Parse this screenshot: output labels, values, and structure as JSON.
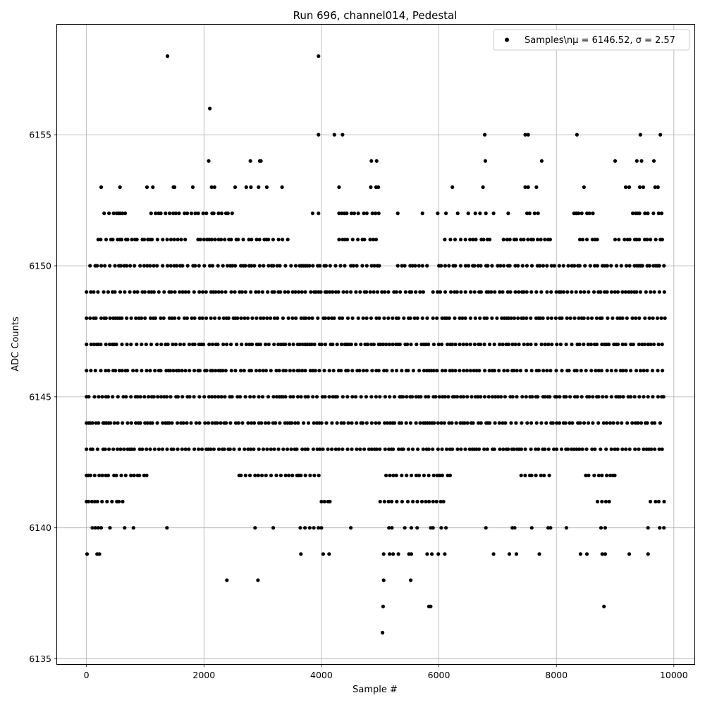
{
  "chart_data": {
    "type": "scatter",
    "title": "Run 696, channel014, Pedestal",
    "xlabel": "Sample #",
    "ylabel": "ADC Counts",
    "xlim": [
      -500,
      10350
    ],
    "ylim": [
      6134.8,
      6159.2
    ],
    "xticks": [
      0,
      2000,
      4000,
      6000,
      8000,
      10000
    ],
    "xtick_labels": [
      "0",
      "2000",
      "4000",
      "6000",
      "8000",
      "10000"
    ],
    "yticks": [
      6135,
      6140,
      6145,
      6150,
      6155
    ],
    "ytick_labels": [
      "6135",
      "6140",
      "6145",
      "6150",
      "6155"
    ],
    "grid": true,
    "legend_position": "top-right",
    "legend_label": "Samples\\nμ = 6146.52, σ = 2.57",
    "marker_color": "#000000",
    "series": [
      {
        "name": "Samples\\nμ = 6146.52, σ = 2.57",
        "bands": [
          {
            "y": 6149,
            "ranges": [
              [
                0,
                5750
              ],
              [
                5900,
                9850
              ]
            ]
          },
          {
            "y": 6148,
            "ranges": [
              [
                0,
                5800
              ],
              [
                5900,
                9850
              ]
            ]
          },
          {
            "y": 6147,
            "ranges": [
              [
                0,
                9850
              ]
            ]
          },
          {
            "y": 6146,
            "ranges": [
              [
                0,
                9850
              ]
            ]
          },
          {
            "y": 6145,
            "ranges": [
              [
                0,
                9850
              ]
            ]
          },
          {
            "y": 6144,
            "ranges": [
              [
                0,
                9850
              ]
            ]
          },
          {
            "y": 6143,
            "ranges": [
              [
                0,
                9850
              ]
            ]
          },
          {
            "y": 6150,
            "ranges": [
              [
                60,
                4400
              ],
              [
                4500,
                5000
              ],
              [
                5300,
                5800
              ],
              [
                6000,
                9850
              ]
            ]
          },
          {
            "y": 6151,
            "ranges": [
              [
                200,
                1700
              ],
              [
                1900,
                3500
              ],
              [
                4300,
                5000
              ],
              [
                6100,
                6900
              ],
              [
                7100,
                7900
              ],
              [
                8400,
                8700
              ],
              [
                9000,
                9850
              ]
            ]
          },
          {
            "y": 6142,
            "ranges": [
              [
                0,
                1100
              ],
              [
                2600,
                4000
              ],
              [
                5100,
                6200
              ],
              [
                7400,
                7900
              ],
              [
                8500,
                9000
              ]
            ]
          },
          {
            "y": 6141,
            "ranges": [
              [
                0,
                700
              ],
              [
                4000,
                4200
              ],
              [
                5000,
                6100
              ],
              [
                8700,
                8900
              ],
              [
                9600,
                9850
              ]
            ]
          },
          {
            "y": 6152,
            "ranges": [
              [
                300,
                700
              ],
              [
                1100,
                2500
              ],
              [
                4300,
                5000
              ],
              [
                7500,
                7700
              ],
              [
                8300,
                8700
              ],
              [
                9300,
                9850
              ]
            ]
          }
        ],
        "outliers": [
          [
            1380,
            6158
          ],
          [
            3950,
            6158
          ],
          [
            2100,
            6156
          ],
          [
            3950,
            6155
          ],
          [
            4220,
            6155
          ],
          [
            4360,
            6155
          ],
          [
            6780,
            6155
          ],
          [
            7470,
            6155
          ],
          [
            7520,
            6155
          ],
          [
            8350,
            6155
          ],
          [
            9430,
            6155
          ],
          [
            9770,
            6155
          ],
          [
            2080,
            6154
          ],
          [
            2790,
            6154
          ],
          [
            2950,
            6154
          ],
          [
            2970,
            6154
          ],
          [
            4850,
            6154
          ],
          [
            4940,
            6154
          ],
          [
            6790,
            6154
          ],
          [
            7750,
            6154
          ],
          [
            9000,
            6154
          ],
          [
            9370,
            6154
          ],
          [
            9450,
            6154
          ],
          [
            9660,
            6154
          ],
          [
            250,
            6153
          ],
          [
            570,
            6153
          ],
          [
            1030,
            6153
          ],
          [
            1130,
            6153
          ],
          [
            1480,
            6153
          ],
          [
            1500,
            6153
          ],
          [
            1810,
            6153
          ],
          [
            2130,
            6153
          ],
          [
            2180,
            6153
          ],
          [
            2530,
            6153
          ],
          [
            2720,
            6153
          ],
          [
            2800,
            6153
          ],
          [
            2930,
            6153
          ],
          [
            3070,
            6153
          ],
          [
            3330,
            6153
          ],
          [
            4300,
            6153
          ],
          [
            4840,
            6153
          ],
          [
            4930,
            6153
          ],
          [
            4970,
            6153
          ],
          [
            6230,
            6153
          ],
          [
            6750,
            6153
          ],
          [
            7470,
            6153
          ],
          [
            7520,
            6153
          ],
          [
            7660,
            6153
          ],
          [
            8470,
            6153
          ],
          [
            9180,
            6153
          ],
          [
            9240,
            6153
          ],
          [
            9420,
            6153
          ],
          [
            9480,
            6153
          ],
          [
            9680,
            6153
          ],
          [
            9730,
            6153
          ],
          [
            5300,
            6152
          ],
          [
            5720,
            6152
          ],
          [
            5980,
            6152
          ],
          [
            6120,
            6152
          ],
          [
            6320,
            6152
          ],
          [
            6500,
            6152
          ],
          [
            6620,
            6152
          ],
          [
            6700,
            6152
          ],
          [
            6800,
            6152
          ],
          [
            6930,
            6152
          ],
          [
            7180,
            6152
          ],
          [
            3850,
            6152
          ],
          [
            3950,
            6152
          ],
          [
            400,
            6140
          ],
          [
            100,
            6140
          ],
          [
            150,
            6140
          ],
          [
            200,
            6140
          ],
          [
            250,
            6140
          ],
          [
            650,
            6140
          ],
          [
            800,
            6140
          ],
          [
            1370,
            6140
          ],
          [
            2870,
            6140
          ],
          [
            3180,
            6140
          ],
          [
            3640,
            6140
          ],
          [
            3720,
            6140
          ],
          [
            3800,
            6140
          ],
          [
            3870,
            6140
          ],
          [
            3950,
            6140
          ],
          [
            4000,
            6140
          ],
          [
            4500,
            6140
          ],
          [
            5150,
            6140
          ],
          [
            5200,
            6140
          ],
          [
            5420,
            6140
          ],
          [
            5530,
            6140
          ],
          [
            5630,
            6140
          ],
          [
            5860,
            6140
          ],
          [
            5900,
            6140
          ],
          [
            6040,
            6140
          ],
          [
            6120,
            6140
          ],
          [
            6800,
            6140
          ],
          [
            7250,
            6140
          ],
          [
            7290,
            6140
          ],
          [
            7580,
            6140
          ],
          [
            7860,
            6140
          ],
          [
            7900,
            6140
          ],
          [
            8170,
            6140
          ],
          [
            8760,
            6140
          ],
          [
            8830,
            6140
          ],
          [
            9560,
            6140
          ],
          [
            9760,
            6140
          ],
          [
            9830,
            6140
          ],
          [
            10,
            6139
          ],
          [
            180,
            6139
          ],
          [
            220,
            6139
          ],
          [
            3650,
            6139
          ],
          [
            4030,
            6139
          ],
          [
            4130,
            6139
          ],
          [
            5060,
            6139
          ],
          [
            5160,
            6139
          ],
          [
            5220,
            6139
          ],
          [
            5310,
            6139
          ],
          [
            5490,
            6139
          ],
          [
            5530,
            6139
          ],
          [
            5800,
            6139
          ],
          [
            5880,
            6139
          ],
          [
            5990,
            6139
          ],
          [
            6100,
            6139
          ],
          [
            6930,
            6139
          ],
          [
            7200,
            6139
          ],
          [
            7320,
            6139
          ],
          [
            7710,
            6139
          ],
          [
            8410,
            6139
          ],
          [
            8520,
            6139
          ],
          [
            8780,
            6139
          ],
          [
            8830,
            6139
          ],
          [
            9240,
            6139
          ],
          [
            9560,
            6139
          ],
          [
            2390,
            6138
          ],
          [
            2920,
            6138
          ],
          [
            5060,
            6138
          ],
          [
            5520,
            6138
          ],
          [
            5050,
            6137
          ],
          [
            5830,
            6137
          ],
          [
            5860,
            6137
          ],
          [
            8810,
            6137
          ],
          [
            5040,
            6136
          ]
        ]
      }
    ]
  }
}
